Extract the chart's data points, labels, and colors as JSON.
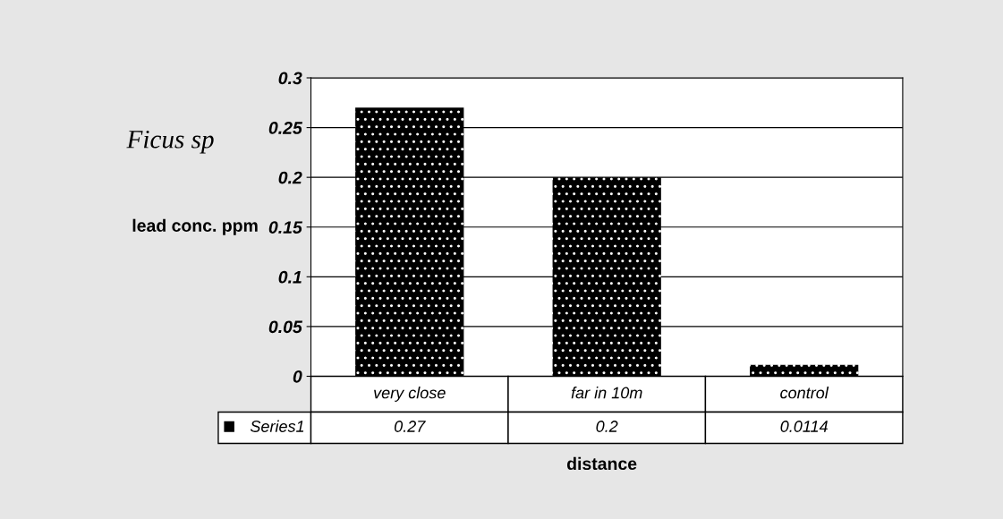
{
  "chart_data": {
    "type": "bar",
    "title": "Ficus sp",
    "xlabel": "distance",
    "ylabel": "lead conc. ppm",
    "categories": [
      "very close",
      "far in 10m",
      "control"
    ],
    "series": [
      {
        "name": "Series1",
        "color": "#000000",
        "values": [
          0.27,
          0.2,
          0.0114
        ]
      }
    ],
    "ylim": [
      0,
      0.3
    ],
    "yticks": [
      0,
      0.05,
      0.1,
      0.15,
      0.2,
      0.25,
      0.3
    ],
    "grid": "y",
    "data_labels": true,
    "legend": "bottom"
  }
}
